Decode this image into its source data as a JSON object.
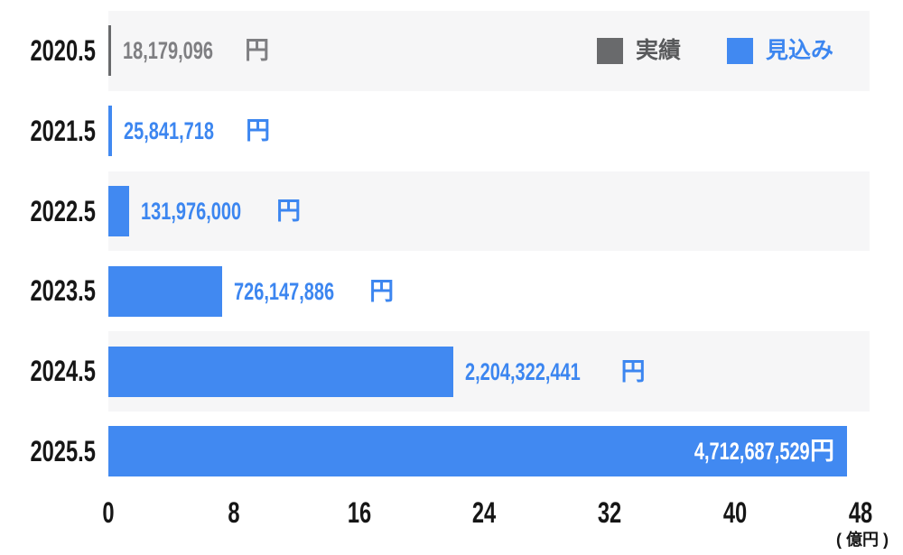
{
  "chart_data": {
    "type": "bar",
    "orientation": "horizontal",
    "title": "",
    "xlabel": "( 億円 )",
    "ylabel": "",
    "x_ticks": [
      0,
      8,
      16,
      24,
      32,
      40,
      48
    ],
    "x_tick_labels": [
      "0",
      "8",
      "16",
      "24",
      "32",
      "40",
      "48"
    ],
    "x_axis_unit_label": "( 億円 )",
    "x_range_oku": [
      0,
      48.6
    ],
    "value_unit": "円",
    "oku_divisor": 100000000,
    "grid": false,
    "legend_position": "top-right",
    "categories": [
      "2020.5",
      "2021.5",
      "2022.5",
      "2023.5",
      "2024.5",
      "2025.5"
    ],
    "legend": [
      {
        "name": "実績",
        "key": "actual",
        "swatch_color": "#696a6c",
        "text_color": "#58595b"
      },
      {
        "name": "見込み",
        "key": "forecast",
        "swatch_color": "#4189f1",
        "text_color": "#3c86f0"
      }
    ],
    "rows": [
      {
        "category": "2020.5",
        "series": "実績",
        "series_key": "actual",
        "value_yen": 18179096,
        "label_number": "18,179,096",
        "label_suffix": " 円",
        "label_placement": "outside"
      },
      {
        "category": "2021.5",
        "series": "見込み",
        "series_key": "forecast",
        "value_yen": 25841718,
        "label_number": "25,841,718",
        "label_suffix": "円",
        "label_placement": "outside"
      },
      {
        "category": "2022.5",
        "series": "見込み",
        "series_key": "forecast",
        "value_yen": 131976000,
        "label_number": "131,976,000",
        "label_suffix": "円",
        "label_placement": "outside"
      },
      {
        "category": "2023.5",
        "series": "見込み",
        "series_key": "forecast",
        "value_yen": 726147886,
        "label_number": "726,147,886",
        "label_suffix": " 円",
        "label_placement": "outside"
      },
      {
        "category": "2024.5",
        "series": "見込み",
        "series_key": "forecast",
        "value_yen": 2204322441,
        "label_number": "2,204,322,441",
        "label_suffix": "円",
        "label_placement": "outside"
      },
      {
        "category": "2025.5",
        "series": "見込み",
        "series_key": "forecast",
        "value_yen": 4712687529,
        "label_number": "4,712,687,529",
        "label_suffix": " 円",
        "label_placement": "inside"
      }
    ],
    "colors": {
      "bar_actual": "#696a6c",
      "bar_forecast": "#4189f1",
      "value_text_actual": "#7f7f82",
      "value_text_forecast": "#3c86f0",
      "value_text_inside_bar": "#ffffff",
      "row_stripe": "#f6f6f7",
      "axis_text": "#161616",
      "background": "#ffffff"
    }
  }
}
